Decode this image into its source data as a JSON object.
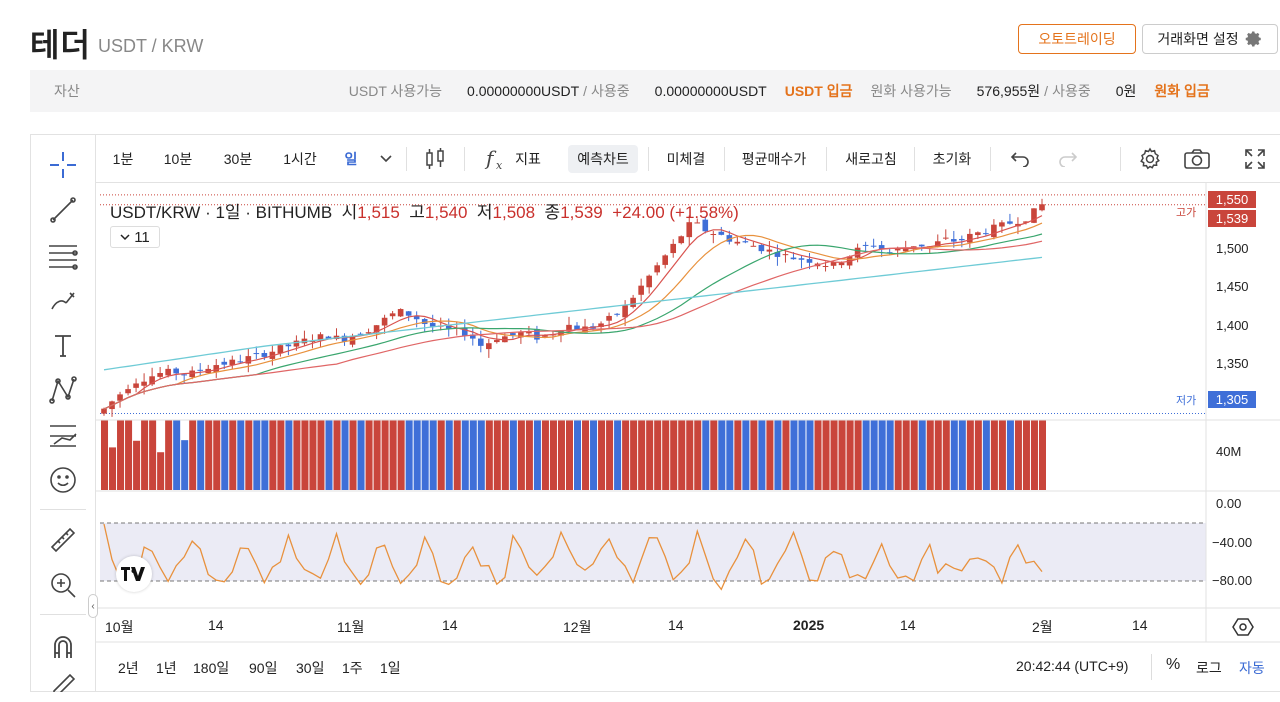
{
  "header": {
    "title": "테더",
    "pair": "USDT / KRW",
    "autotrade_label": "오토트레이딩",
    "settings_label": "거래화면 설정"
  },
  "assets": {
    "label": "자산",
    "usdt_avail_label": "USDT 사용가능",
    "usdt_avail_value": "0.00000000USDT",
    "usdt_inuse_label": "사용중",
    "usdt_inuse_value": "0.00000000USDT",
    "usdt_deposit": "USDT 입금",
    "krw_avail_label": "원화 사용가능",
    "krw_avail_value": "576,955원",
    "krw_inuse_label": "사용중",
    "krw_inuse_value": "0원",
    "krw_deposit": "원화 입금"
  },
  "toolbar": {
    "intervals": [
      "1분",
      "10분",
      "30분",
      "1시간",
      "일"
    ],
    "indicators": "지표",
    "forecast": "예측차트",
    "unfilled": "미체결",
    "avg_price": "평균매수가",
    "refresh": "새로고침",
    "reset": "초기화"
  },
  "legend": {
    "symbol": "USDT/KRW · 1일 · BITHUMB",
    "open_l": "시",
    "open": "1,515",
    "high_l": "고",
    "high": "1,540",
    "low_l": "저",
    "low": "1,508",
    "close_l": "종",
    "close": "1,539",
    "change": "+24.00 (+1.58%)",
    "ma_toggle": "11"
  },
  "price_axis": {
    "ticks": [
      "1,500",
      "1,450",
      "1,400",
      "1,350"
    ],
    "high_label": "고가",
    "high_value": "1,550",
    "last_value": "1,539",
    "low_label": "저가",
    "low_value": "1,305",
    "volume_tick": "40M",
    "osc_ticks": [
      "0.00",
      "−40.00",
      "−80.00"
    ]
  },
  "time_axis": [
    "10월",
    "14",
    "11월",
    "14",
    "12월",
    "14",
    "2025",
    "14",
    "2월",
    "14"
  ],
  "bottom": {
    "ranges": [
      "2년",
      "1년",
      "180일",
      "90일",
      "30일",
      "1주",
      "1일"
    ],
    "clock": "20:42:44 (UTC+9)",
    "percent": "%",
    "log": "로그",
    "auto": "자동"
  },
  "colors": {
    "up": "#c9453b",
    "down": "#3f6fd8",
    "accent": "#e4731c",
    "ma_teal": "#6fcbd6",
    "osc": "#e8913d"
  },
  "chart_data": {
    "type": "candlestick",
    "source": "BITHUMB",
    "symbol": "USDT/KRW",
    "interval": "1D",
    "close_series": [
      1310,
      1325,
      1340,
      1345,
      1350,
      1352,
      1348,
      1355,
      1360,
      1362,
      1366,
      1370,
      1375,
      1380,
      1385,
      1390,
      1392,
      1388,
      1395,
      1400,
      1410,
      1420,
      1415,
      1405,
      1400,
      1398,
      1395,
      1380,
      1390,
      1392,
      1396,
      1390,
      1395,
      1405,
      1400,
      1402,
      1410,
      1420,
      1440,
      1460,
      1480,
      1500,
      1520,
      1510,
      1505,
      1498,
      1495,
      1490,
      1485,
      1480,
      1478,
      1475,
      1470,
      1480,
      1490,
      1495,
      1485,
      1490,
      1495,
      1492,
      1500,
      1498,
      1505,
      1510,
      1515,
      1520,
      1525,
      1539
    ],
    "ylim": [
      1300,
      1560
    ]
  }
}
